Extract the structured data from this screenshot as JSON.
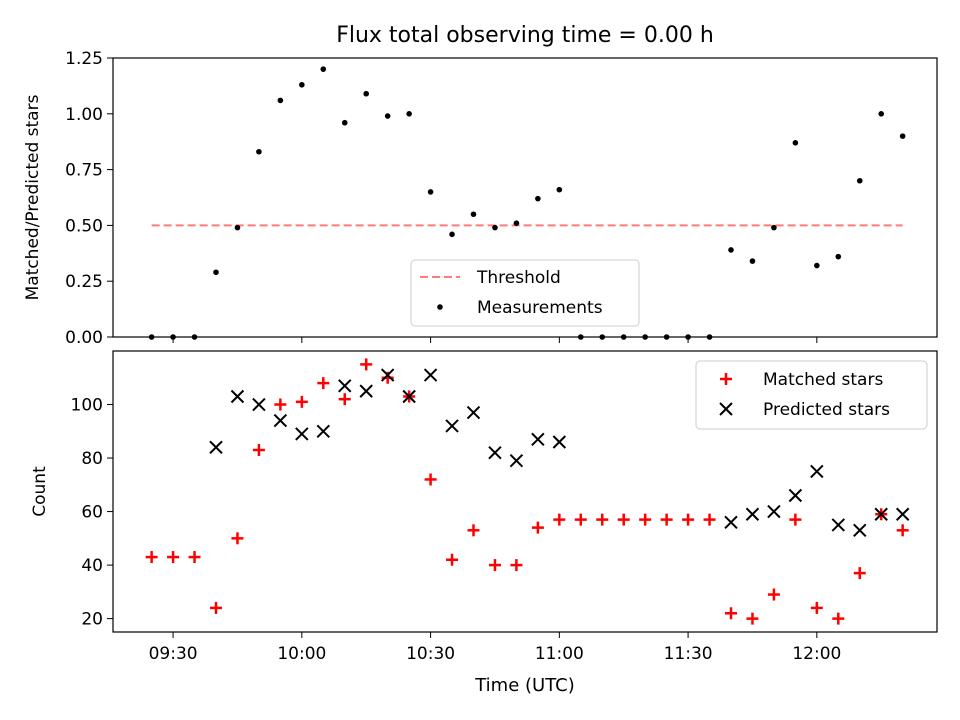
{
  "title": "Flux total observing time = 0.00 h",
  "xlabel": "Time (UTC)",
  "x_tick_labels": [
    "09:30",
    "10:00",
    "10:30",
    "11:00",
    "11:30",
    "12:00"
  ],
  "colors": {
    "threshold": "#ff7a7a",
    "measurements": "#000000",
    "matched": "#ff0000",
    "predicted": "#000000"
  },
  "chart_data": [
    {
      "type": "scatter",
      "title": "Flux total observing time = 0.00 h",
      "ylabel": "Matched/Predicted stars",
      "ylim": [
        0,
        1.25
      ],
      "yticks": [
        "0.00",
        "0.25",
        "0.50",
        "0.75",
        "1.00",
        "1.25"
      ],
      "xlim": [
        "09:16",
        "12:28"
      ],
      "legend": "bottom-center",
      "threshold": {
        "name": "Threshold",
        "y": 0.5,
        "x_range": [
          "09:25",
          "12:20"
        ]
      },
      "series": [
        {
          "name": "Measurements",
          "x": [
            "09:25",
            "09:30",
            "09:35",
            "09:40",
            "09:45",
            "09:50",
            "09:55",
            "10:00",
            "10:05",
            "10:10",
            "10:15",
            "10:20",
            "10:25",
            "10:30",
            "10:35",
            "10:40",
            "10:45",
            "10:50",
            "10:55",
            "11:00",
            "11:05",
            "11:10",
            "11:15",
            "11:20",
            "11:25",
            "11:30",
            "11:35",
            "11:40",
            "11:45",
            "11:50",
            "11:55",
            "12:00",
            "12:05",
            "12:10",
            "12:15",
            "12:20"
          ],
          "y": [
            0,
            0,
            0,
            0.29,
            0.49,
            0.83,
            1.06,
            1.13,
            1.2,
            0.96,
            1.09,
            0.99,
            1.0,
            0.65,
            0.46,
            0.55,
            0.49,
            0.51,
            0.62,
            0.66,
            0,
            0,
            0,
            0,
            0,
            0,
            0,
            0.39,
            0.34,
            0.49,
            0.87,
            0.32,
            0.36,
            0.7,
            1.0,
            0.9
          ]
        }
      ]
    },
    {
      "type": "scatter",
      "ylabel": "Count",
      "yticks": [
        "20",
        "40",
        "60",
        "80",
        "100"
      ],
      "ylim": [
        15,
        120
      ],
      "xlim": [
        "09:16",
        "12:28"
      ],
      "legend": "top-right",
      "series": [
        {
          "name": "Matched stars",
          "marker": "+",
          "x": [
            "09:25",
            "09:30",
            "09:35",
            "09:40",
            "09:45",
            "09:50",
            "09:55",
            "10:00",
            "10:05",
            "10:10",
            "10:15",
            "10:20",
            "10:25",
            "10:30",
            "10:35",
            "10:40",
            "10:45",
            "10:50",
            "10:55",
            "11:00",
            "11:05",
            "11:10",
            "11:15",
            "11:20",
            "11:25",
            "11:30",
            "11:35",
            "11:40",
            "11:45",
            "11:50",
            "11:55",
            "12:00",
            "12:05",
            "12:10",
            "12:15",
            "12:20"
          ],
          "y": [
            43,
            43,
            43,
            24,
            50,
            83,
            100,
            101,
            108,
            102,
            115,
            110,
            103,
            72,
            42,
            53,
            40,
            40,
            54,
            57,
            57,
            57,
            57,
            57,
            57,
            57,
            57,
            22,
            20,
            29,
            57,
            24,
            20,
            37,
            59,
            53
          ]
        },
        {
          "name": "Predicted stars",
          "marker": "x",
          "x": [
            "09:40",
            "09:45",
            "09:50",
            "09:55",
            "10:00",
            "10:05",
            "10:10",
            "10:15",
            "10:20",
            "10:25",
            "10:30",
            "10:35",
            "10:40",
            "10:45",
            "10:50",
            "10:55",
            "11:00",
            "11:40",
            "11:45",
            "11:50",
            "11:55",
            "12:00",
            "12:05",
            "12:10",
            "12:15",
            "12:20"
          ],
          "y": [
            84,
            103,
            100,
            94,
            89,
            90,
            107,
            105,
            111,
            103,
            111,
            92,
            97,
            82,
            79,
            87,
            86,
            56,
            59,
            60,
            66,
            75,
            55,
            53,
            59,
            59
          ]
        }
      ]
    }
  ]
}
